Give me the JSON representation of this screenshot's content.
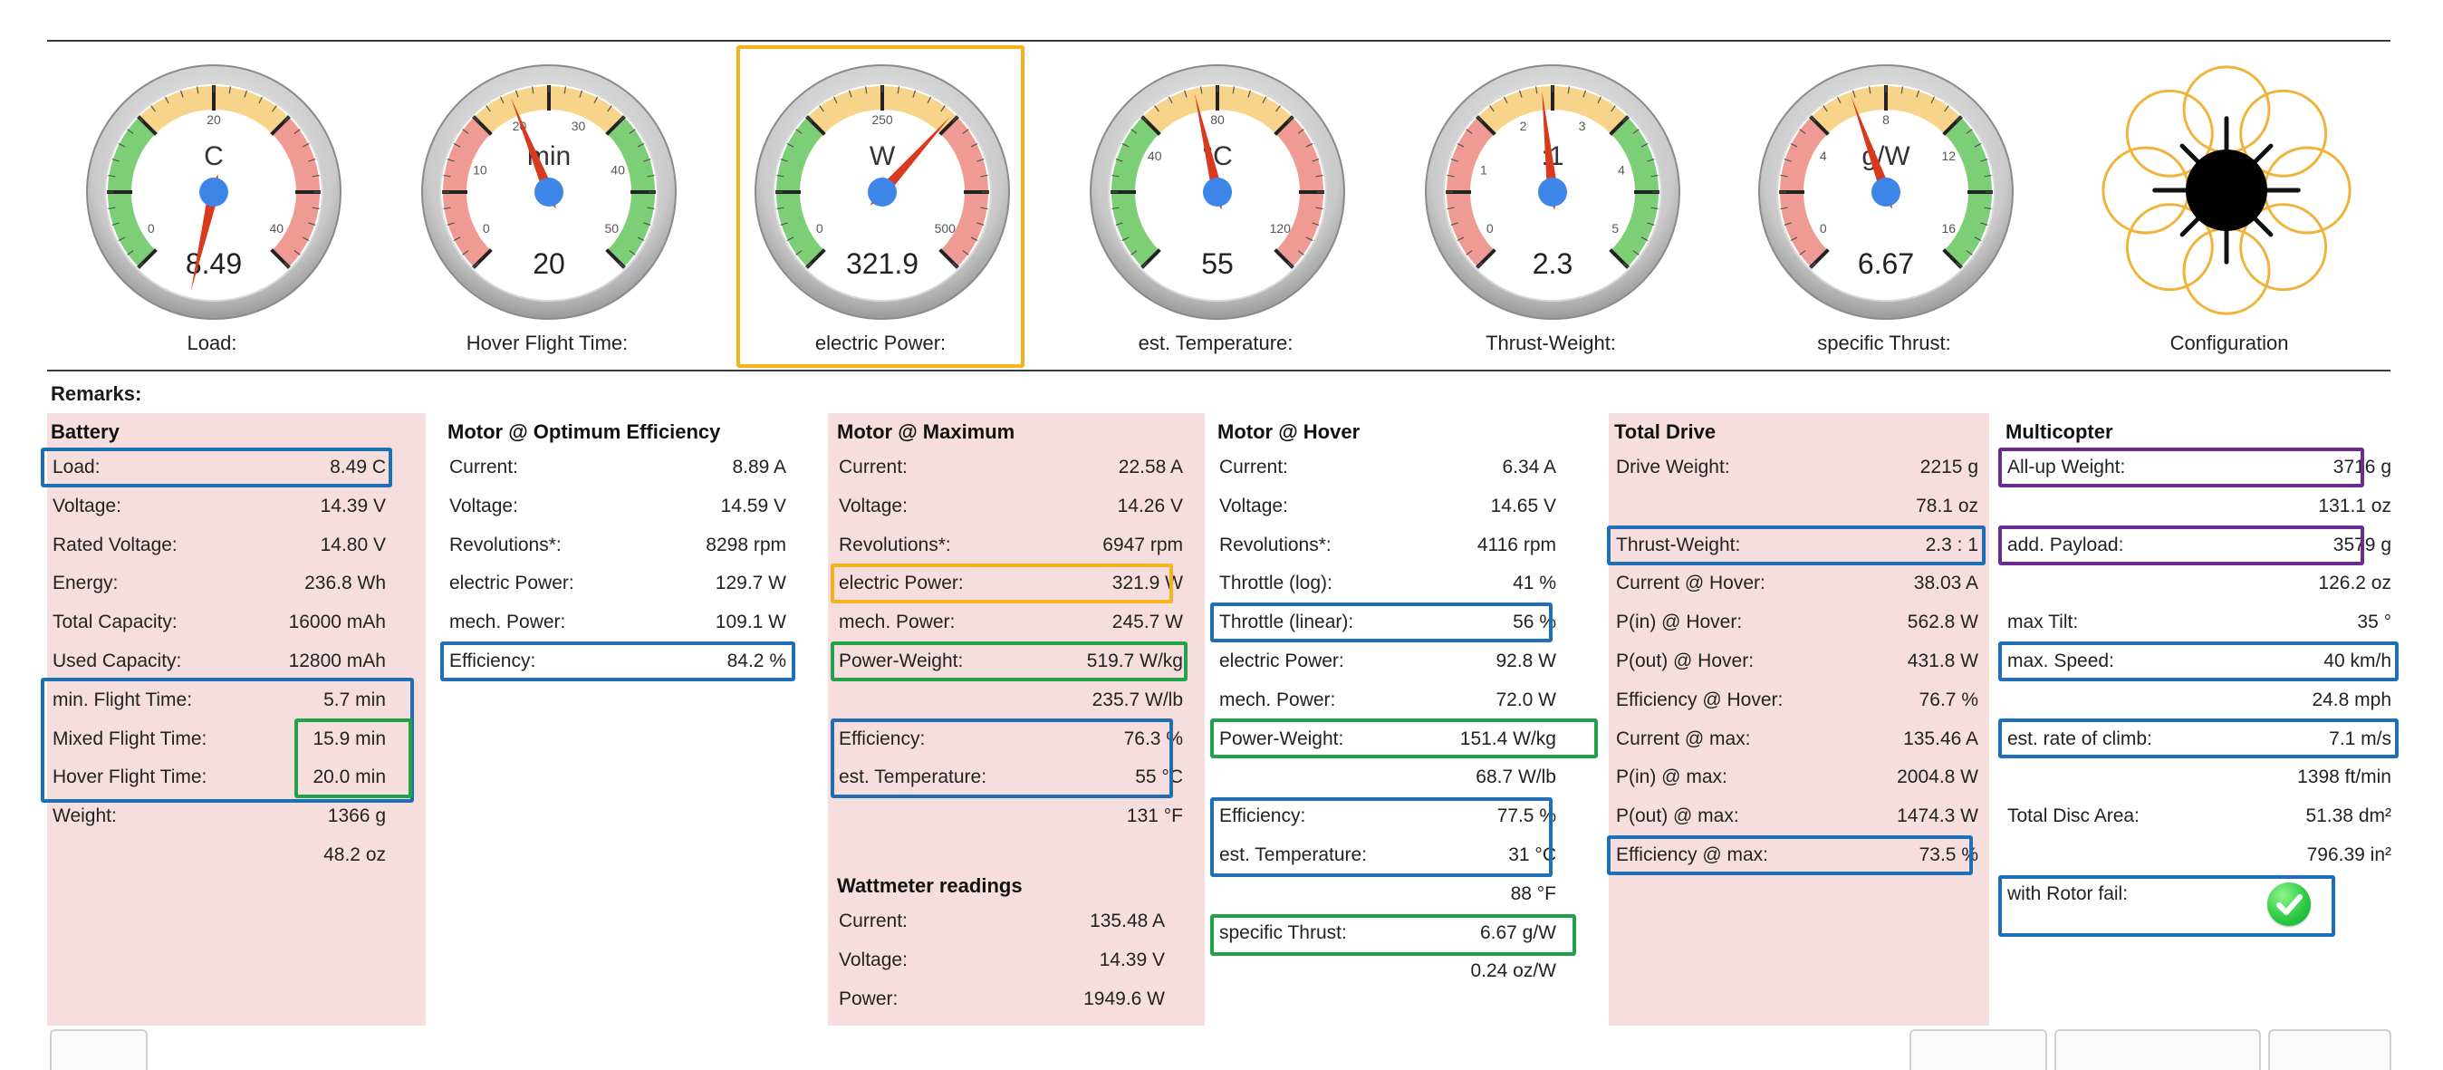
{
  "colors": {
    "highlight_blue": "#1f6fb5",
    "highlight_green": "#22a34a",
    "highlight_orange": "#f2b31b",
    "highlight_purple": "#6a2c91",
    "panel_pink": "#f6dede",
    "gauge_green": "#7ccf76",
    "gauge_yellow": "#f7d48a",
    "gauge_red": "#ef9a92",
    "needle": "#d9391d",
    "hub": "#3d86e8"
  },
  "gauges": [
    {
      "unit": "C",
      "value": "8.49",
      "caption": "Load:",
      "ticks": [
        "0",
        "20",
        "40"
      ]
    },
    {
      "unit": "min",
      "value": "20",
      "caption": "Hover Flight Time:",
      "ticks": [
        "0",
        "10",
        "20",
        "30",
        "40",
        "50"
      ]
    },
    {
      "unit": "W",
      "value": "321.9",
      "caption": "electric Power:",
      "ticks": [
        "0",
        "250",
        "500"
      ]
    },
    {
      "unit": "°C",
      "value": "55",
      "caption": "est. Temperature:",
      "ticks": [
        "40",
        "80",
        "120"
      ]
    },
    {
      "unit": ":1",
      "value": "2.3",
      "caption": "Thrust-Weight:",
      "ticks": [
        "0",
        "1",
        "2",
        "3",
        "4",
        "5"
      ]
    },
    {
      "unit": "g/W",
      "value": "6.67",
      "caption": "specific Thrust:",
      "ticks": [
        "0",
        "4",
        "8",
        "12",
        "16"
      ]
    }
  ],
  "configuration": {
    "caption": "Configuration",
    "icon": "octocopter-icon"
  },
  "remarks_label": "Remarks:",
  "battery": {
    "title": "Battery",
    "rows": [
      {
        "label": "Load:",
        "value": "8.49 C"
      },
      {
        "label": "Voltage:",
        "value": "14.39 V"
      },
      {
        "label": "Rated Voltage:",
        "value": "14.80 V"
      },
      {
        "label": "Energy:",
        "value": "236.8 Wh"
      },
      {
        "label": "Total Capacity:",
        "value": "16000 mAh"
      },
      {
        "label": "Used Capacity:",
        "value": "12800 mAh"
      },
      {
        "label": "min. Flight Time:",
        "value": "5.7 min"
      },
      {
        "label": "Mixed Flight Time:",
        "value": "15.9 min"
      },
      {
        "label": "Hover Flight Time:",
        "value": "20.0 min"
      },
      {
        "label": "Weight:",
        "value": "1366 g"
      },
      {
        "label": "",
        "value": "48.2 oz"
      }
    ]
  },
  "motor_optimum": {
    "title": "Motor @ Optimum Efficiency",
    "rows": [
      {
        "label": "Current:",
        "value": "8.89 A"
      },
      {
        "label": "Voltage:",
        "value": "14.59 V"
      },
      {
        "label": "Revolutions*:",
        "value": "8298 rpm"
      },
      {
        "label": "electric Power:",
        "value": "129.7 W"
      },
      {
        "label": "mech. Power:",
        "value": "109.1 W"
      },
      {
        "label": "Efficiency:",
        "value": "84.2 %"
      }
    ]
  },
  "motor_maximum": {
    "title": "Motor @ Maximum",
    "rows": [
      {
        "label": "Current:",
        "value": "22.58 A"
      },
      {
        "label": "Voltage:",
        "value": "14.26 V"
      },
      {
        "label": "Revolutions*:",
        "value": "6947 rpm"
      },
      {
        "label": "electric Power:",
        "value": "321.9 W"
      },
      {
        "label": "mech. Power:",
        "value": "245.7 W"
      },
      {
        "label": "Power-Weight:",
        "value": "519.7 W/kg"
      },
      {
        "label": "",
        "value": "235.7 W/lb"
      },
      {
        "label": "Efficiency:",
        "value": "76.3 %"
      },
      {
        "label": "est. Temperature:",
        "value": "55 °C"
      },
      {
        "label": "",
        "value": "131 °F"
      }
    ]
  },
  "wattmeter": {
    "title": "Wattmeter readings",
    "rows": [
      {
        "label": "Current:",
        "value": "135.48 A"
      },
      {
        "label": "Voltage:",
        "value": "14.39 V"
      },
      {
        "label": "Power:",
        "value": "1949.6 W"
      }
    ]
  },
  "motor_hover": {
    "title": "Motor @ Hover",
    "rows": [
      {
        "label": "Current:",
        "value": "6.34 A"
      },
      {
        "label": "Voltage:",
        "value": "14.65 V"
      },
      {
        "label": "Revolutions*:",
        "value": "4116 rpm"
      },
      {
        "label": "Throttle (log):",
        "value": "41 %"
      },
      {
        "label": "Throttle (linear):",
        "value": "56 %"
      },
      {
        "label": "electric Power:",
        "value": "92.8 W"
      },
      {
        "label": "mech. Power:",
        "value": "72.0 W"
      },
      {
        "label": "Power-Weight:",
        "value": "151.4 W/kg"
      },
      {
        "label": "",
        "value": "68.7 W/lb"
      },
      {
        "label": "Efficiency:",
        "value": "77.5 %"
      },
      {
        "label": "est. Temperature:",
        "value": "31 °C"
      },
      {
        "label": "",
        "value": "88 °F"
      },
      {
        "label": "specific Thrust:",
        "value": "6.67 g/W"
      },
      {
        "label": "",
        "value": "0.24 oz/W"
      }
    ]
  },
  "total_drive": {
    "title": "Total Drive",
    "rows": [
      {
        "label": "Drive Weight:",
        "value": "2215 g"
      },
      {
        "label": "",
        "value": "78.1 oz"
      },
      {
        "label": "Thrust-Weight:",
        "value": "2.3 : 1"
      },
      {
        "label": "Current @ Hover:",
        "value": "38.03 A"
      },
      {
        "label": "P(in) @ Hover:",
        "value": "562.8 W"
      },
      {
        "label": "P(out) @ Hover:",
        "value": "431.8 W"
      },
      {
        "label": "Efficiency @ Hover:",
        "value": "76.7 %"
      },
      {
        "label": "Current @ max:",
        "value": "135.46 A"
      },
      {
        "label": "P(in) @ max:",
        "value": "2004.8 W"
      },
      {
        "label": "P(out) @ max:",
        "value": "1474.3 W"
      },
      {
        "label": "Efficiency @ max:",
        "value": "73.5 %"
      }
    ]
  },
  "multicopter": {
    "title": "Multicopter",
    "rows": [
      {
        "label": "All-up Weight:",
        "value": "3716 g"
      },
      {
        "label": "",
        "value": "131.1 oz"
      },
      {
        "label": "add. Payload:",
        "value": "3579 g"
      },
      {
        "label": "",
        "value": "126.2 oz"
      },
      {
        "label": "max Tilt:",
        "value": "35 °"
      },
      {
        "label": "max. Speed:",
        "value": "40 km/h"
      },
      {
        "label": "",
        "value": "24.8 mph"
      },
      {
        "label": "est. rate of climb:",
        "value": "7.1 m/s"
      },
      {
        "label": "",
        "value": "1398 ft/min"
      },
      {
        "label": "Total Disc Area:",
        "value": "51.38 dm²"
      },
      {
        "label": "",
        "value": "796.39 in²"
      },
      {
        "label": "with Rotor fail:",
        "value": ""
      }
    ],
    "rotor_fail_icon": "checkmark-icon"
  }
}
